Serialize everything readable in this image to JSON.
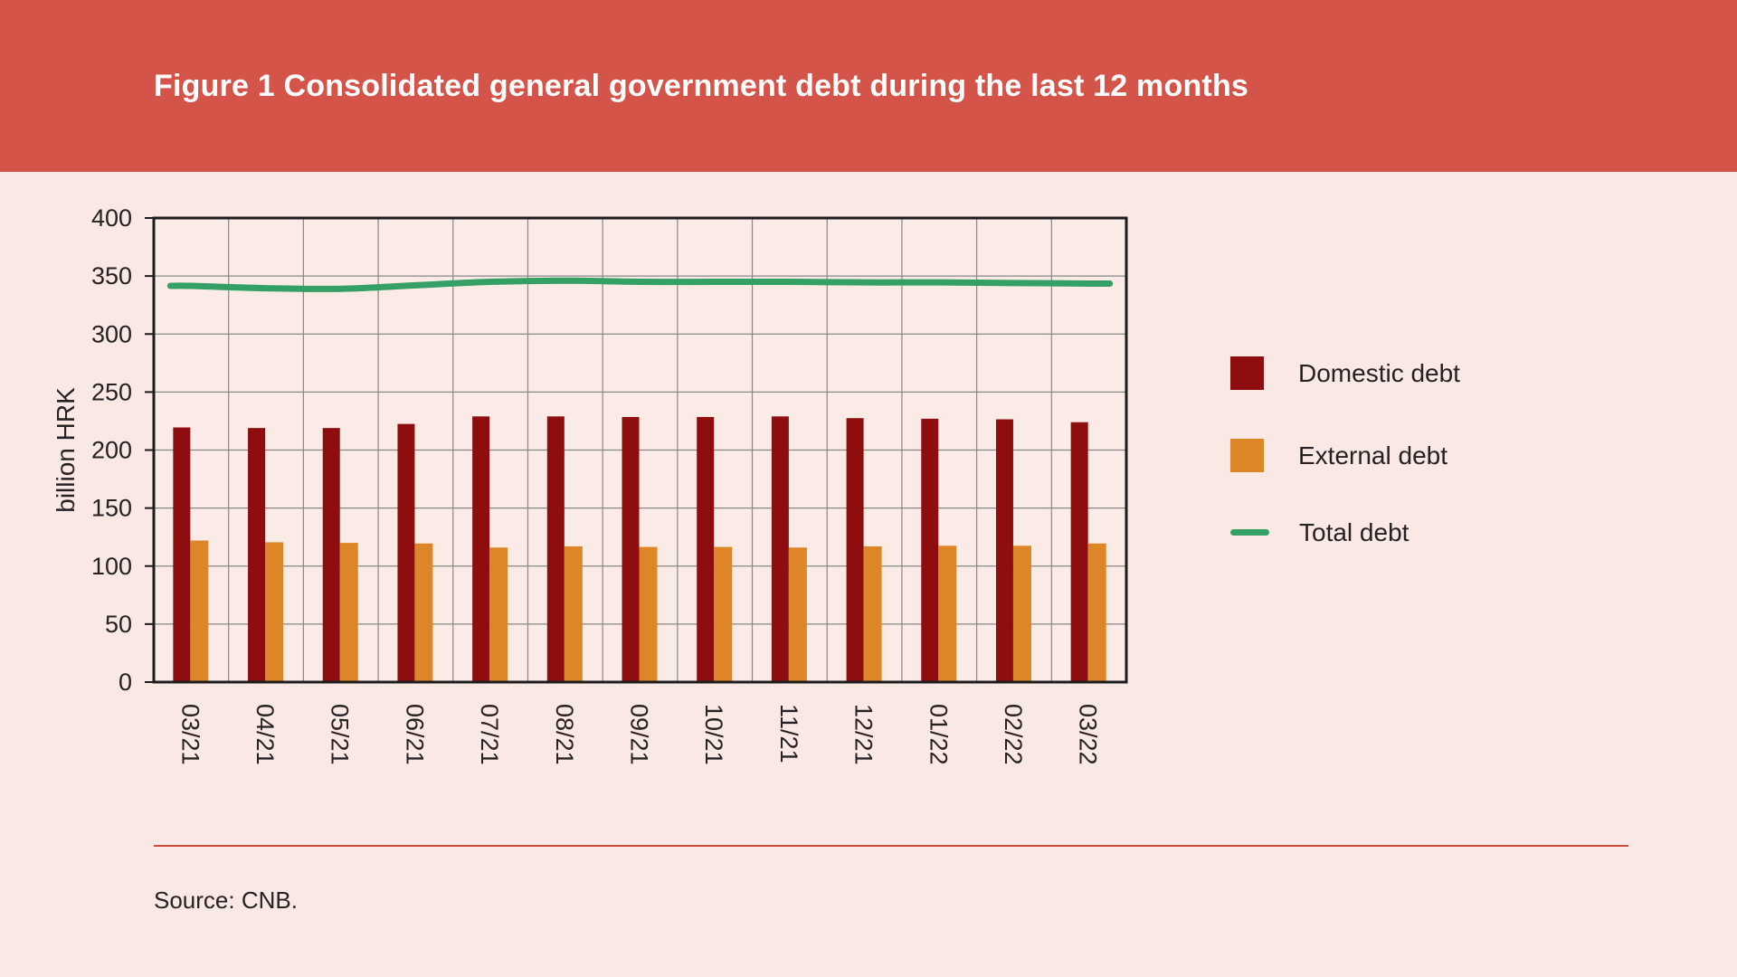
{
  "header": {
    "title": "Figure 1 Consolidated general government debt during the last 12 months",
    "background": "#d5544a",
    "text_color": "#ffffff"
  },
  "chart_data": {
    "type": "bar",
    "title": "Figure 1 Consolidated general government debt during the last 12 months",
    "ylabel": "billion HRK",
    "ylim": [
      0,
      400
    ],
    "ytick_step": 50,
    "yticks": [
      0,
      50,
      100,
      150,
      200,
      250,
      300,
      350,
      400
    ],
    "grid": true,
    "legend_position": "right",
    "categories": [
      "03/21",
      "04/21",
      "05/21",
      "06/21",
      "07/21",
      "08/21",
      "09/21",
      "10/21",
      "11/21",
      "12/21",
      "01/22",
      "02/22",
      "03/22"
    ],
    "series": [
      {
        "name": "Domestic debt",
        "type": "bar",
        "color": "#8e0e10",
        "values": [
          219.5,
          219,
          219,
          222.5,
          229,
          229,
          228.5,
          228.5,
          229,
          227.5,
          227,
          226.5,
          224
        ]
      },
      {
        "name": "External debt",
        "type": "bar",
        "color": "#dd8628",
        "values": [
          122,
          120.5,
          120,
          119.5,
          116,
          117,
          116.5,
          116.5,
          116,
          117,
          117.5,
          117.5,
          119.5
        ]
      },
      {
        "name": "Total debt",
        "type": "line",
        "color": "#34a066",
        "values": [
          341.5,
          339.5,
          339,
          342,
          345,
          346,
          345,
          345,
          345,
          344.5,
          344.5,
          344,
          343.5
        ]
      }
    ]
  },
  "legend": {
    "items": [
      {
        "label": "Domestic debt",
        "swatch": "square",
        "color": "#8e0e10"
      },
      {
        "label": "External debt",
        "swatch": "square",
        "color": "#dd8628"
      },
      {
        "label": "Total debt",
        "swatch": "line",
        "color": "#34a066"
      }
    ]
  },
  "source": {
    "text": "Source: CNB."
  },
  "colors": {
    "page_background": "#f9e8e4",
    "plot_background": "#fbebe7",
    "gridline": "#878787",
    "axis": "#1c1c1c",
    "text": "#262122",
    "divider": "#cf4a38"
  }
}
